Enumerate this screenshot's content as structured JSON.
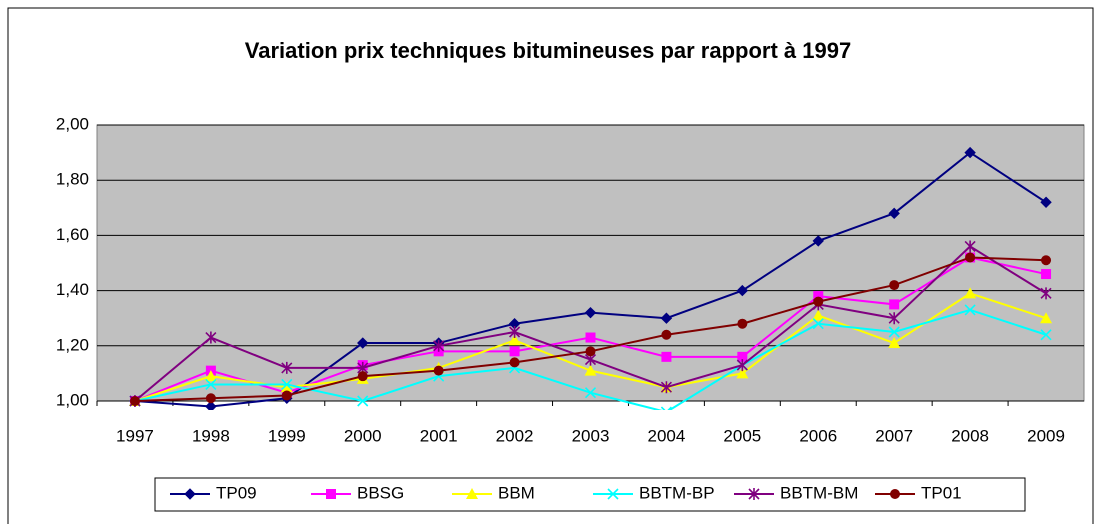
{
  "chart_data": {
    "type": "line",
    "title": "Variation prix techniques bitumineuses par rapport à 1997",
    "categories": [
      "1997",
      "1998",
      "1999",
      "2000",
      "2001",
      "2002",
      "2003",
      "2004",
      "2005",
      "2006",
      "2007",
      "2008",
      "2009"
    ],
    "series": [
      {
        "name": "TP09",
        "color": "#000080",
        "marker": "diamond",
        "values": [
          1.0,
          0.98,
          1.01,
          1.21,
          1.21,
          1.28,
          1.32,
          1.3,
          1.4,
          1.58,
          1.68,
          1.9,
          1.72
        ]
      },
      {
        "name": "BBSG",
        "color": "#FF00FF",
        "marker": "square",
        "values": [
          1.0,
          1.11,
          1.03,
          1.13,
          1.18,
          1.18,
          1.23,
          1.16,
          1.16,
          1.38,
          1.35,
          1.52,
          1.46
        ]
      },
      {
        "name": "BBM",
        "color": "#FFFF00",
        "marker": "triangle",
        "values": [
          1.0,
          1.09,
          1.05,
          1.08,
          1.12,
          1.22,
          1.11,
          1.05,
          1.1,
          1.31,
          1.21,
          1.39,
          1.3
        ]
      },
      {
        "name": "BBTM-BP",
        "color": "#00FFFF",
        "marker": "x",
        "values": [
          1.0,
          1.06,
          1.06,
          1.0,
          1.09,
          1.12,
          1.03,
          0.96,
          1.13,
          1.28,
          1.25,
          1.33,
          1.24
        ]
      },
      {
        "name": "BBTM-BM",
        "color": "#800080",
        "marker": "star",
        "values": [
          1.0,
          1.23,
          1.12,
          1.12,
          1.2,
          1.25,
          1.15,
          1.05,
          1.13,
          1.35,
          1.3,
          1.56,
          1.39
        ]
      },
      {
        "name": "TP01",
        "color": "#800000",
        "marker": "circle",
        "values": [
          1.0,
          1.01,
          1.02,
          1.09,
          1.11,
          1.14,
          1.18,
          1.24,
          1.28,
          1.36,
          1.42,
          1.52,
          1.51
        ]
      }
    ],
    "ylim": [
      1,
      2
    ],
    "yticks": [
      {
        "value": 1,
        "label": "1,00"
      },
      {
        "value": 1.2,
        "label": "1,20"
      },
      {
        "value": 1.4,
        "label": "1,40"
      },
      {
        "value": 1.6,
        "label": "1,60"
      },
      {
        "value": 1.8,
        "label": "1,80"
      },
      {
        "value": 2,
        "label": "2,00"
      }
    ],
    "grid": true,
    "legend": "bottom"
  }
}
